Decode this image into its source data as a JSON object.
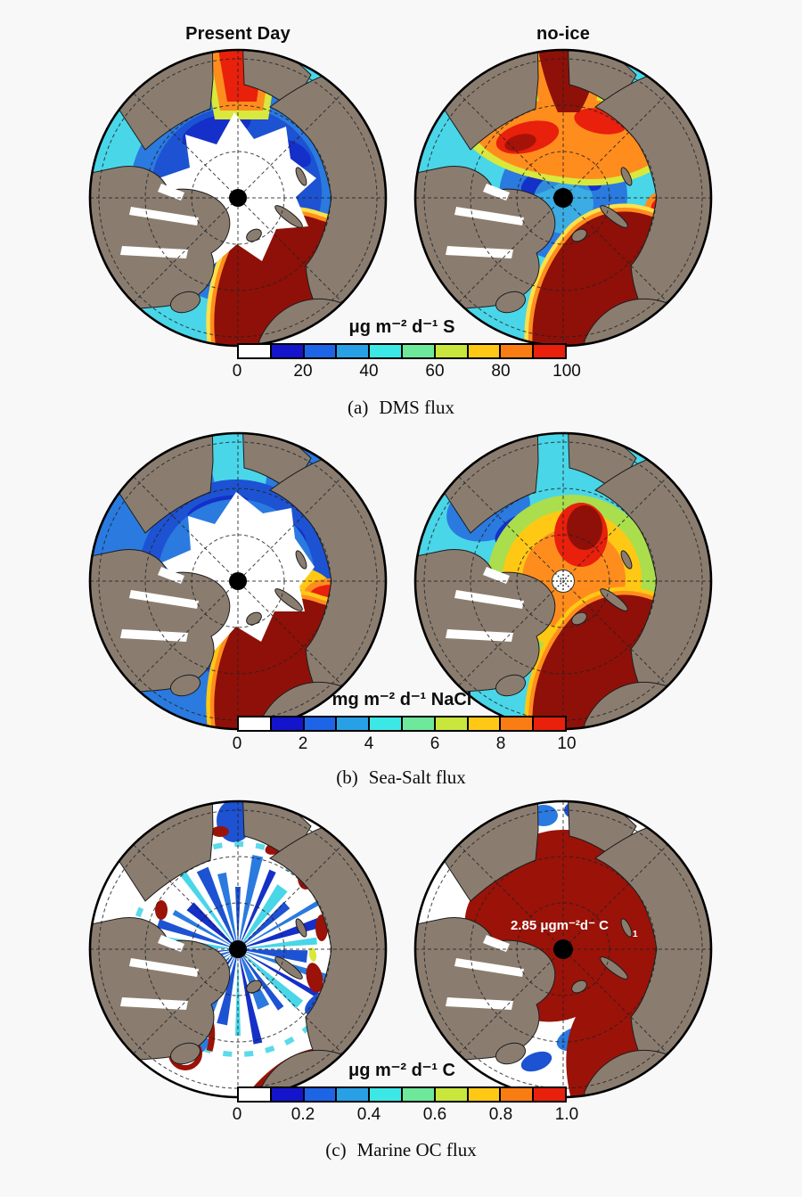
{
  "page": {
    "background": "#f8f8f8"
  },
  "header": {
    "left_title": "Present Day",
    "right_title": "no-ice"
  },
  "colormap": [
    "#ffffff",
    "#1414cc",
    "#1e64e6",
    "#28a0e6",
    "#3ce8e6",
    "#6ee89b",
    "#c8e63c",
    "#ffc814",
    "#fa7d14",
    "#e8200c"
  ],
  "colors": {
    "land": "#8a7d70",
    "ocean_deep_red": "#8f1008",
    "rim": "#000000",
    "pole_dot": "#000000"
  },
  "figures": [
    {
      "caption_label": "(a)",
      "caption_text": "DMS flux",
      "colorbar": {
        "title": "μg m⁻² d⁻¹ S",
        "ticks": [
          "0",
          "20",
          "40",
          "60",
          "80",
          "100"
        ]
      }
    },
    {
      "caption_label": "(b)",
      "caption_text": "Sea-Salt flux",
      "colorbar": {
        "title": "mg m⁻² d⁻¹ NaCl",
        "ticks": [
          "0",
          "2",
          "4",
          "6",
          "8",
          "10"
        ]
      }
    },
    {
      "caption_label": "(c)",
      "caption_text": "Marine OC flux",
      "colorbar": {
        "title": "μg m⁻² d⁻¹ C",
        "ticks": [
          "0",
          "0.2",
          "0.4",
          "0.6",
          "0.8",
          "1.0"
        ]
      },
      "annotation": {
        "text": "2.85 μgm⁻²d⁻ C",
        "sub": "1"
      }
    }
  ]
}
